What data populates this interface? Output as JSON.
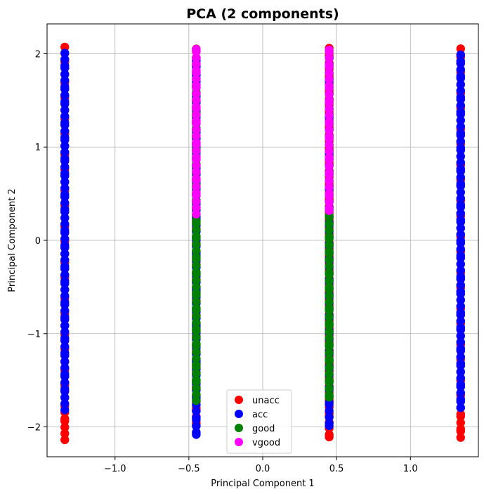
{
  "chart_data": {
    "type": "scatter",
    "title": "PCA (2 components)",
    "xlabel": "Principal Component 1",
    "ylabel": "Principal Component 2",
    "xlim": [
      -1.46,
      1.46
    ],
    "ylim": [
      -2.32,
      2.32
    ],
    "xticks": [
      -1.0,
      -0.5,
      0.0,
      0.5,
      1.0
    ],
    "xtick_labels": [
      "−1.0",
      "−0.5",
      "0.0",
      "0.5",
      "1.0"
    ],
    "yticks": [
      -2,
      -1,
      0,
      1,
      2
    ],
    "ytick_labels": [
      "−2",
      "−1",
      "0",
      "1",
      "2"
    ],
    "grid": true,
    "legend_position": "bottom-center",
    "x_columns": [
      -1.34,
      -0.45,
      0.45,
      1.34
    ],
    "series": [
      {
        "name": "unacc",
        "color": "#ff0000",
        "columns": [
          {
            "x": -1.34,
            "y_min": -2.12,
            "y_max": 2.1
          },
          {
            "x": -0.45,
            "y_min": -2.0,
            "y_max": 2.1
          },
          {
            "x": 0.45,
            "y_min": -2.12,
            "y_max": 2.1
          },
          {
            "x": 1.34,
            "y_min": -2.12,
            "y_max": 2.1
          }
        ]
      },
      {
        "name": "acc",
        "color": "#0000ff",
        "columns": [
          {
            "x": -1.34,
            "y_min": -1.8,
            "y_max": 2.0
          },
          {
            "x": -0.45,
            "y_min": -2.1,
            "y_max": 2.0
          },
          {
            "x": 0.45,
            "y_min": -2.0,
            "y_max": 2.0
          },
          {
            "x": 1.34,
            "y_min": -1.8,
            "y_max": 2.0
          }
        ]
      },
      {
        "name": "good",
        "color": "#008000",
        "columns": [
          {
            "x": -0.45,
            "y_min": -1.7,
            "y_max": 1.7
          },
          {
            "x": 0.45,
            "y_min": -1.7,
            "y_max": 0.3
          }
        ]
      },
      {
        "name": "vgood",
        "color": "#ff00ff",
        "columns": [
          {
            "x": -0.45,
            "y_min": 0.3,
            "y_max": 2.1
          },
          {
            "x": 0.45,
            "y_min": 0.3,
            "y_max": 2.1
          }
        ]
      }
    ]
  }
}
